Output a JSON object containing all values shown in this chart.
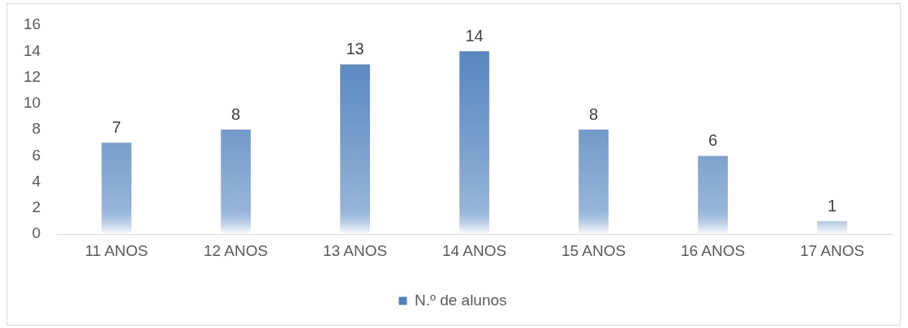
{
  "chart_data": {
    "type": "bar",
    "categories": [
      "11 ANOS",
      "12 ANOS",
      "13 ANOS",
      "14 ANOS",
      "15 ANOS",
      "16 ANOS",
      "17 ANOS"
    ],
    "series": [
      {
        "name": "N.º de alunos",
        "color": "#4f81bd",
        "values": [
          7,
          8,
          13,
          14,
          8,
          6,
          1
        ]
      }
    ],
    "ylim": [
      0,
      16
    ],
    "yticks": [
      0,
      2,
      4,
      6,
      8,
      10,
      12,
      14,
      16
    ],
    "grid": false,
    "legend": "bottom",
    "data_labels": true
  }
}
